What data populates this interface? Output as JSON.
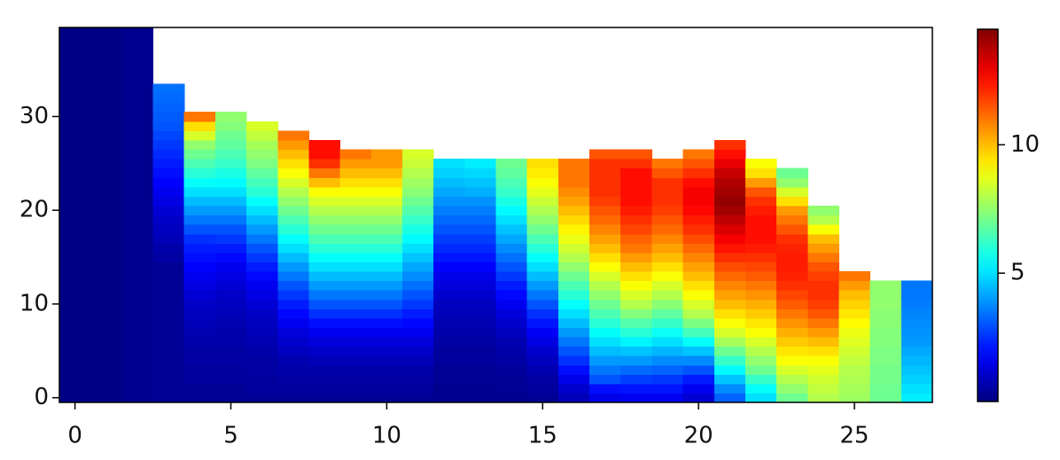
{
  "chart_data": {
    "type": "heatmap",
    "colormap": "jet",
    "clim": [
      0,
      14.5
    ],
    "xlim": [
      -0.5,
      27.5
    ],
    "ylim": [
      -0.5,
      39.5
    ],
    "xticks": [
      0,
      5,
      10,
      15,
      20,
      25
    ],
    "yticks": [
      0,
      10,
      20,
      30
    ],
    "colorbar_ticks": [
      5,
      10
    ],
    "z": [
      [
        0.1,
        0.1,
        0.1,
        0.1,
        0.1,
        0.1,
        0.1,
        0.1,
        0.1,
        0.1,
        0.1,
        0.1,
        0.1,
        0.1,
        0.1,
        0.1,
        0.1,
        0.1,
        0.1,
        0.1,
        0.1,
        0.1,
        0.1,
        0.1,
        0.1,
        0.1,
        0.1,
        0.1,
        0.1,
        0.1,
        0.1,
        0.1,
        0.1,
        0.1,
        0.1,
        0.1,
        0.1,
        0.1,
        0.1,
        0.1
      ],
      [
        0.1,
        0.1,
        0.1,
        0.1,
        0.1,
        0.1,
        0.1,
        0.1,
        0.1,
        0.1,
        0.1,
        0.1,
        0.1,
        0.1,
        0.1,
        0.1,
        0.1,
        0.1,
        0.1,
        0.1,
        0.1,
        0.1,
        0.1,
        0.1,
        0.1,
        0.1,
        0.1,
        0.1,
        0.1,
        0.1,
        0.1,
        0.1,
        0.1,
        0.1,
        0.1,
        0.1,
        0.1,
        0.1,
        0.1,
        0.1
      ],
      [
        0.2,
        0.2,
        0.2,
        0.2,
        0.2,
        0.2,
        0.2,
        0.2,
        0.2,
        0.2,
        0.2,
        0.2,
        0.2,
        0.2,
        0.2,
        0.2,
        0.2,
        0.2,
        0.2,
        0.2,
        0.2,
        0.2,
        0.2,
        0.2,
        0.2,
        0.2,
        0.2,
        0.2,
        0.2,
        0.2,
        0.2,
        0.2,
        0.2,
        0.2,
        0.2,
        0.2,
        0.2,
        0.2,
        0.2,
        0.2
      ],
      [
        0.3,
        0.3,
        0.3,
        0.3,
        0.3,
        0.3,
        0.3,
        0.3,
        0.3,
        0.3,
        0.3,
        0.3,
        0.3,
        0.3,
        0.3,
        0.5,
        0.6,
        0.8,
        0.9,
        1.0,
        1.2,
        1.4,
        1.6,
        1.8,
        2.0,
        2.2,
        2.4,
        2.6,
        2.8,
        3.0,
        3.1,
        3.2,
        3.3,
        3.4
      ],
      [
        0.3,
        0.3,
        0.4,
        0.4,
        0.5,
        0.5,
        0.6,
        0.7,
        0.8,
        0.9,
        1.0,
        1.2,
        1.4,
        1.6,
        1.8,
        2.0,
        2.2,
        2.5,
        3,
        3.5,
        4,
        4.5,
        5,
        5.5,
        6,
        6.5,
        7,
        7.5,
        8.5,
        9.5,
        11
      ],
      [
        0.3,
        0.3,
        0.4,
        0.4,
        0.5,
        0.5,
        0.6,
        0.6,
        0.7,
        0.8,
        0.9,
        1.0,
        1.2,
        1.4,
        1.6,
        1.9,
        2.2,
        2.6,
        3,
        3.5,
        4,
        4.5,
        5,
        5.4,
        5.8,
        6.2,
        6.5,
        6.8,
        7,
        7.3,
        7.5
      ],
      [
        0.3,
        0.4,
        0.4,
        0.5,
        0.5,
        0.6,
        0.7,
        0.8,
        0.9,
        1.0,
        1.2,
        1.4,
        1.6,
        1.9,
        2.2,
        2.6,
        3,
        3.5,
        4,
        4.5,
        5,
        5.5,
        6,
        6.4,
        6.8,
        7.2,
        7.5,
        7.8,
        8.2,
        8.5
      ],
      [
        0.3,
        0.4,
        0.5,
        0.6,
        0.7,
        0.9,
        1.1,
        1.3,
        1.6,
        1.9,
        2.2,
        2.6,
        3,
        3.5,
        4,
        4.5,
        5,
        5.5,
        6,
        6.5,
        7,
        7.5,
        8,
        8.5,
        9,
        9.5,
        10,
        10.5,
        11
      ],
      [
        0.3,
        0.4,
        0.5,
        0.6,
        0.8,
        1.0,
        1.3,
        1.6,
        2,
        2.5,
        3,
        3.5,
        4,
        4.5,
        5,
        5.5,
        6,
        6.5,
        7,
        7.5,
        8,
        8.5,
        9,
        10,
        11,
        12,
        12.5,
        12.5
      ],
      [
        0.3,
        0.4,
        0.5,
        0.6,
        0.8,
        1.0,
        1.3,
        1.6,
        2,
        2.5,
        3,
        3.5,
        4,
        4.5,
        5,
        5.5,
        6,
        6.5,
        7,
        7.5,
        8,
        8.5,
        9,
        9.5,
        10,
        10.5,
        11
      ],
      [
        0.3,
        0.4,
        0.5,
        0.6,
        0.8,
        1.0,
        1.3,
        1.6,
        2,
        2.5,
        3,
        3.5,
        4,
        4.5,
        5,
        5.5,
        6,
        6.5,
        7,
        7.5,
        8,
        8.5,
        9,
        9.5,
        10,
        10.5,
        10.5
      ],
      [
        0.3,
        0.4,
        0.5,
        0.6,
        0.8,
        1.0,
        1.3,
        1.6,
        1.9,
        2.2,
        2.6,
        3,
        3.4,
        3.8,
        4.2,
        4.6,
        5,
        5.4,
        5.8,
        6.2,
        6.6,
        7,
        7.4,
        7.7,
        8,
        8.3,
        8.5
      ],
      [
        0.2,
        0.2,
        0.3,
        0.3,
        0.4,
        0.4,
        0.5,
        0.6,
        0.7,
        0.8,
        0.9,
        1.1,
        1.3,
        1.5,
        1.8,
        2.1,
        2.4,
        2.7,
        3,
        3.3,
        3.6,
        3.9,
        4.2,
        4.5,
        4.8,
        5
      ],
      [
        0.2,
        0.2,
        0.3,
        0.3,
        0.4,
        0.4,
        0.5,
        0.6,
        0.7,
        0.8,
        0.9,
        1.1,
        1.3,
        1.5,
        1.8,
        2.1,
        2.4,
        2.7,
        3,
        3.3,
        3.6,
        3.9,
        4.3,
        4.6,
        4.9,
        5.2
      ],
      [
        0.2,
        0.3,
        0.3,
        0.4,
        0.5,
        0.6,
        0.7,
        0.9,
        1.1,
        1.3,
        1.6,
        1.9,
        2.2,
        2.6,
        3,
        3.4,
        3.8,
        4.2,
        4.6,
        5,
        5.4,
        5.8,
        6.2,
        6.5,
        6.8,
        7
      ],
      [
        0.3,
        0.4,
        0.5,
        0.7,
        0.9,
        1.1,
        1.4,
        1.7,
        2.1,
        2.5,
        3,
        3.5,
        4,
        4.5,
        5,
        5.5,
        6,
        6.5,
        7,
        7.5,
        7.9,
        8.3,
        8.7,
        9,
        9.3,
        9.5
      ],
      [
        0.8,
        1.1,
        1.5,
        2,
        2.5,
        3,
        3.5,
        4,
        4.5,
        5,
        5.5,
        6,
        6.5,
        7,
        7.5,
        8,
        8.4,
        8.8,
        9.2,
        9.6,
        10,
        10.4,
        10.7,
        11,
        11,
        11
      ],
      [
        1.5,
        2,
        3,
        3.5,
        4,
        4.5,
        5,
        5.5,
        6,
        6.5,
        7,
        7.5,
        8,
        8.5,
        9,
        9.5,
        10,
        10.4,
        10.8,
        11.2,
        11.5,
        11.8,
        12,
        12,
        12,
        12,
        11.5
      ],
      [
        1.6,
        2.1,
        2.7,
        3.3,
        4,
        4.6,
        5.3,
        6,
        6.6,
        7.3,
        8,
        8.5,
        9,
        9.5,
        10,
        10.5,
        11,
        11.3,
        11.7,
        12,
        12.3,
        12.5,
        12.5,
        12.5,
        12.5,
        12,
        11.5
      ],
      [
        1.6,
        2.1,
        2.6,
        3.2,
        3.8,
        4.4,
        5,
        5.6,
        6.2,
        6.8,
        7.4,
        8,
        8.5,
        9,
        9.5,
        10,
        10.4,
        10.8,
        11.2,
        11.5,
        11.8,
        12,
        12,
        12,
        11.5,
        11
      ],
      [
        1.2,
        1.6,
        2.2,
        3,
        3.8,
        4.6,
        5.5,
        6.4,
        7.2,
        8,
        8.5,
        9,
        9.5,
        10,
        10.4,
        10.8,
        11.2,
        11.6,
        12,
        12.3,
        12.6,
        12.8,
        12.8,
        12.5,
        12,
        11.5,
        11
      ],
      [
        3.2,
        3.8,
        4.6,
        5.4,
        6.2,
        7,
        7.8,
        8.5,
        9,
        9.5,
        10,
        10.4,
        10.8,
        11.2,
        11.6,
        12,
        12.4,
        12.8,
        13.2,
        13.6,
        14,
        14.2,
        14,
        13.8,
        13.5,
        13,
        12.5,
        12
      ],
      [
        5,
        5.5,
        6.2,
        7,
        7.5,
        8,
        8.5,
        9,
        9.4,
        9.8,
        10.2,
        10.6,
        11,
        11.4,
        11.7,
        12,
        12.3,
        12.5,
        12.5,
        12.5,
        12.3,
        12,
        11.5,
        10.5,
        9.5,
        9
      ],
      [
        7,
        7.5,
        8,
        8.5,
        9,
        9.4,
        9.8,
        10.2,
        10.6,
        11,
        11.4,
        11.7,
        12,
        12.2,
        12.3,
        12.3,
        12.2,
        12,
        11.5,
        11,
        10.5,
        9.5,
        8.5,
        7.5,
        7
      ],
      [
        8,
        8.2,
        8.4,
        8.7,
        9,
        9.5,
        10,
        10.5,
        11,
        11.5,
        11.8,
        12,
        12,
        11.8,
        11.5,
        11,
        10.5,
        10,
        9,
        8,
        7.5
      ],
      [
        7.7,
        7.8,
        7.9,
        8,
        8.2,
        8.4,
        8.6,
        8.8,
        9.1,
        9.4,
        9.7,
        10,
        10.5,
        11
      ],
      [
        7,
        7,
        7.1,
        7.1,
        7.2,
        7.2,
        7.3,
        7.3,
        7.4,
        7.4,
        7.5,
        7.5,
        7.5
      ],
      [
        5.2,
        5,
        4.8,
        4.6,
        4.4,
        4.2,
        4,
        3.9,
        3.8,
        3.7,
        3.6,
        3.5,
        3.5
      ]
    ]
  }
}
